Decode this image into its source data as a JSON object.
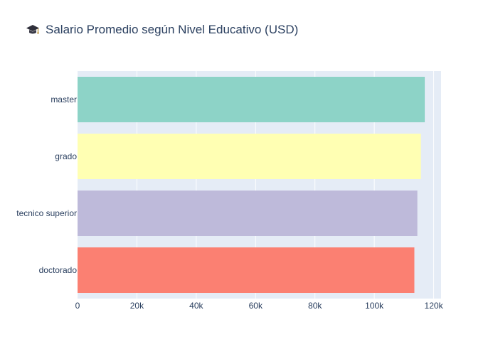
{
  "chart_data": {
    "type": "bar",
    "orientation": "horizontal",
    "title": "Salario Promedio según Nivel Educativo (USD)",
    "title_icon": "graduation-cap-icon",
    "categories": [
      "master",
      "grado",
      "tecnico superior",
      "doctorado"
    ],
    "values": [
      117000,
      115700,
      114500,
      113500
    ],
    "colors": [
      "#8dd3c7",
      "#ffffb3",
      "#bebada",
      "#fb8072"
    ],
    "xlim": [
      0,
      122500
    ],
    "xticks": [
      0,
      20000,
      40000,
      60000,
      80000,
      100000,
      120000
    ],
    "xtick_labels": [
      "0",
      "20k",
      "40k",
      "60k",
      "80k",
      "100k",
      "120k"
    ],
    "xlabel": "",
    "ylabel": "",
    "grid": true,
    "plot_background": "#e5ecf6",
    "text_color": "#2a3f5f"
  }
}
